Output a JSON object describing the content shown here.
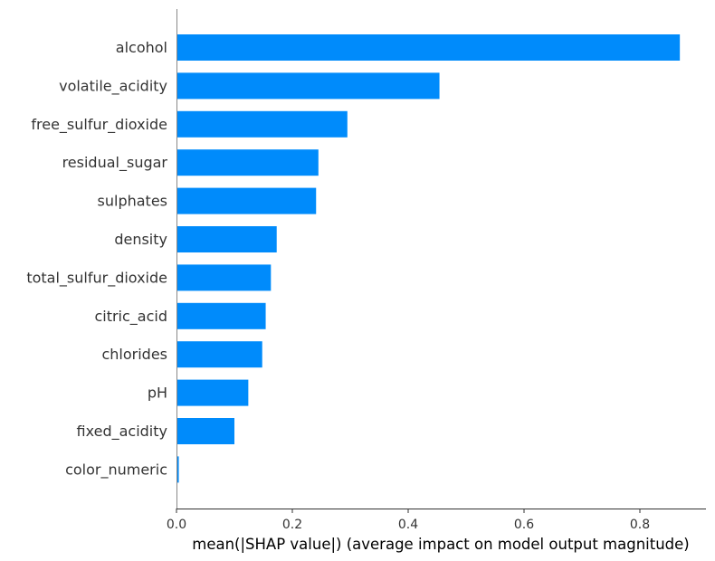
{
  "chart_data": {
    "type": "bar",
    "orientation": "horizontal",
    "categories": [
      "alcohol",
      "volatile_acidity",
      "free_sulfur_dioxide",
      "residual_sugar",
      "sulphates",
      "density",
      "total_sulfur_dioxide",
      "citric_acid",
      "chlorides",
      "pH",
      "fixed_acidity",
      "color_numeric"
    ],
    "values": [
      0.869,
      0.454,
      0.295,
      0.245,
      0.241,
      0.173,
      0.163,
      0.154,
      0.148,
      0.124,
      0.1,
      0.004
    ],
    "xlabel": "mean(|SHAP value|) (average impact on model output magnitude)",
    "ylabel": "",
    "xlim": [
      0,
      0.91
    ],
    "xticks": [
      0.0,
      0.2,
      0.4,
      0.6,
      0.8
    ],
    "xtick_labels": [
      "0.0",
      "0.2",
      "0.4",
      "0.6",
      "0.8"
    ],
    "grid": false,
    "bar_color": "#008bfb"
  }
}
